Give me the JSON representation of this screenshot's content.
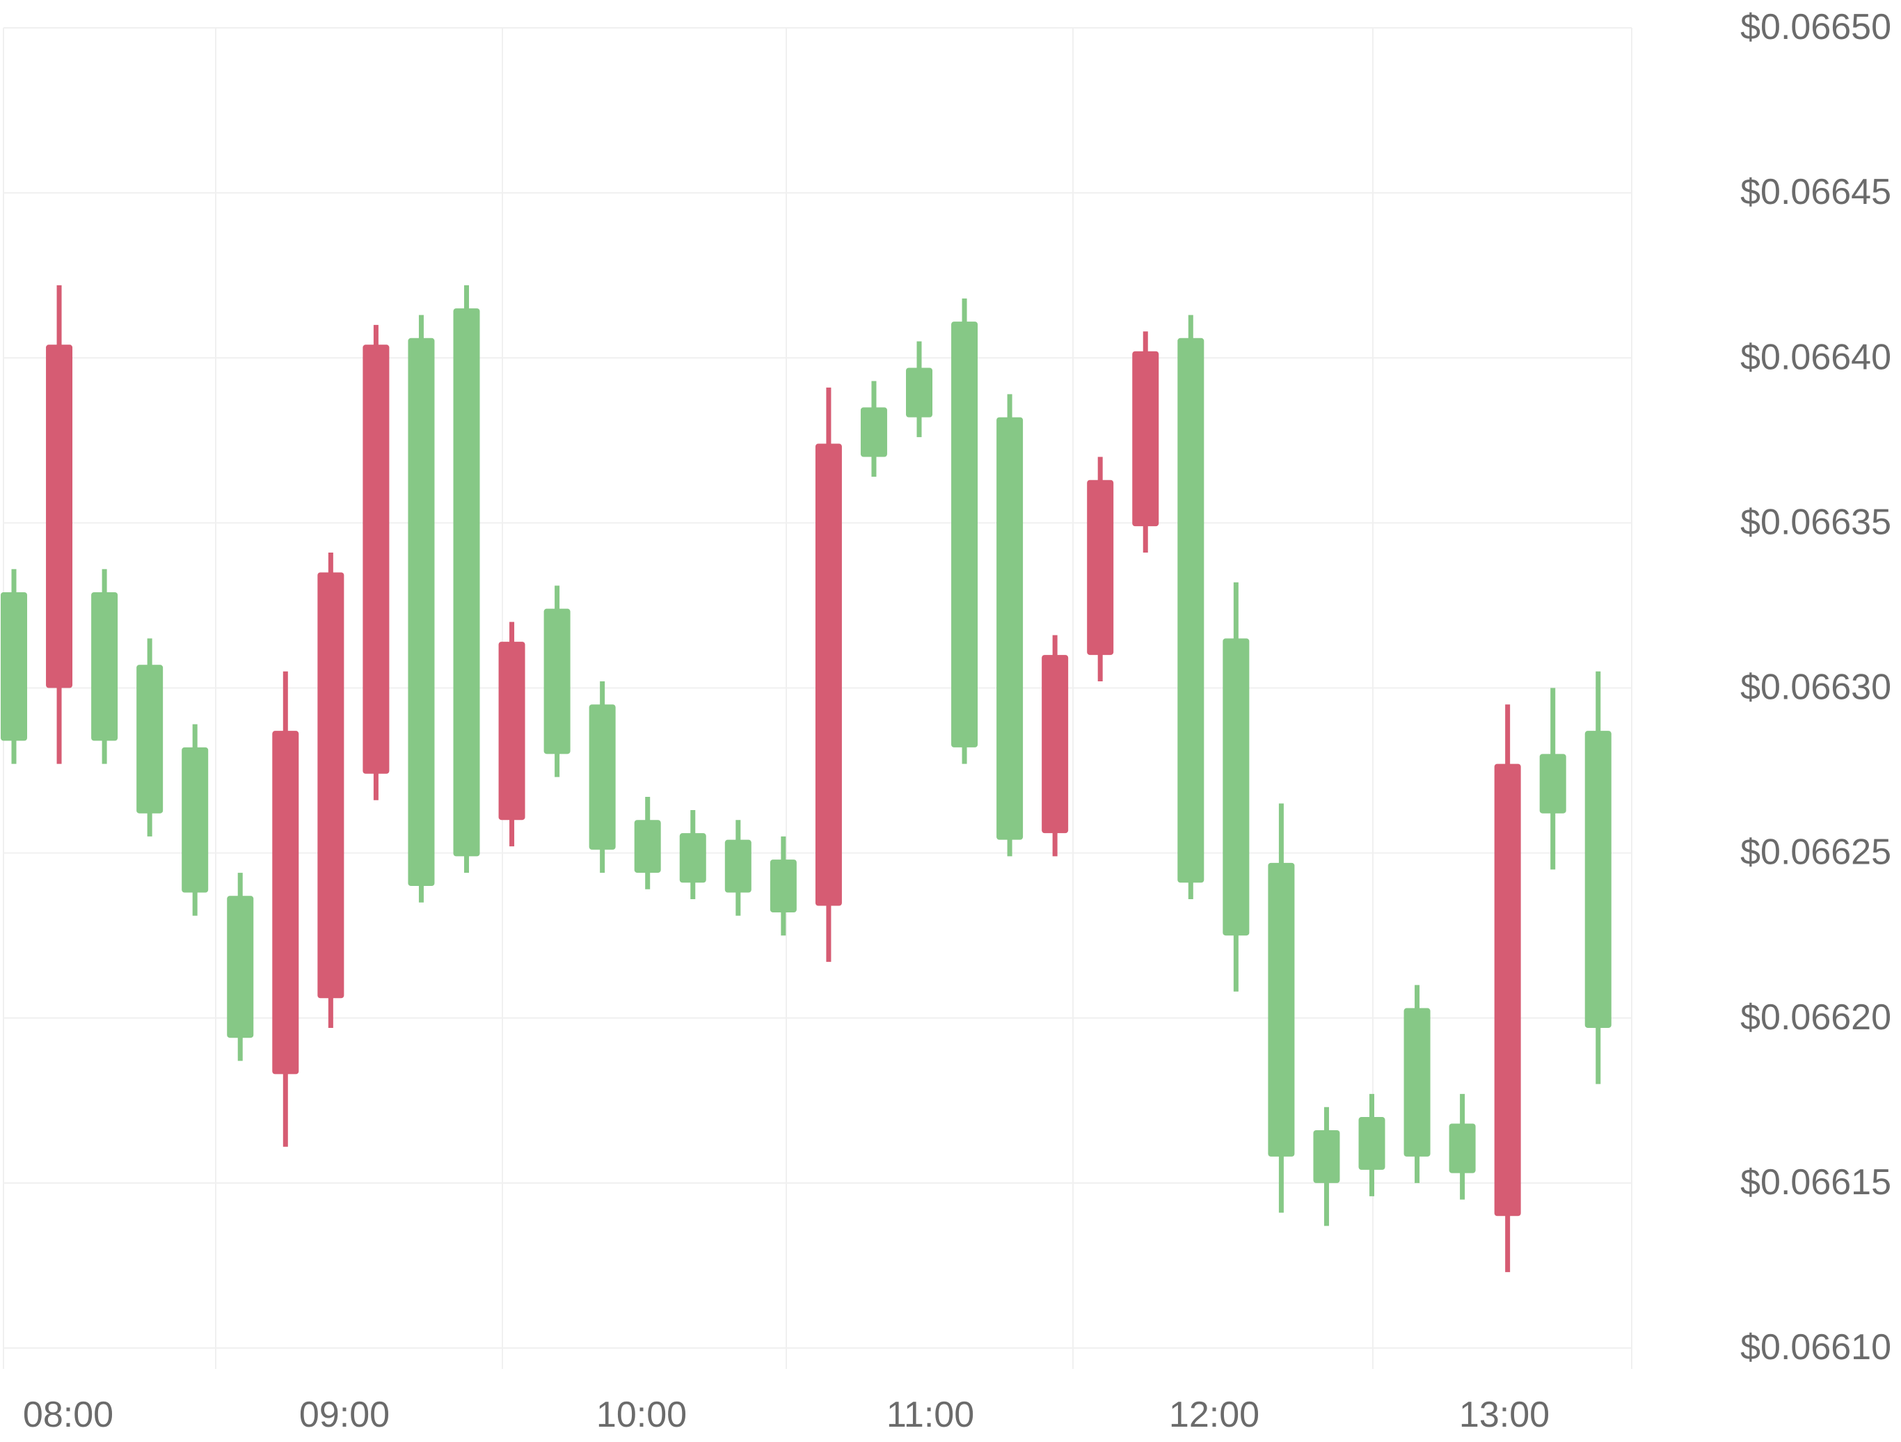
{
  "chart_data": {
    "type": "candlestick",
    "x_ticks": [
      "08:00",
      "09:00",
      "10:00",
      "11:00",
      "12:00",
      "13:00"
    ],
    "y_ticks": [
      "$0.06650",
      "$0.06645",
      "$0.06640",
      "$0.06635",
      "$0.06630",
      "$0.06625",
      "$0.06620",
      "$0.06615",
      "$0.06610"
    ],
    "y_tick_values": [
      0.0665,
      0.06645,
      0.0664,
      0.06635,
      0.0663,
      0.06625,
      0.0662,
      0.06615,
      0.0661
    ],
    "ylim": [
      0.0661,
      0.0665
    ],
    "grid": true,
    "colors": {
      "up": "#86c886",
      "down": "#d65c73",
      "grid": "#f0f0f0",
      "label": "#6b6b6b"
    },
    "candles": [
      {
        "time": "07:50",
        "open": 0.066284,
        "close": 0.066329,
        "high": 0.066336,
        "low": 0.066277
      },
      {
        "time": "07:55",
        "open": 0.066404,
        "close": 0.0663,
        "high": 0.066422,
        "low": 0.066277
      },
      {
        "time": "08:00",
        "open": 0.066284,
        "close": 0.066329,
        "high": 0.066336,
        "low": 0.066277
      },
      {
        "time": "08:05",
        "open": 0.066262,
        "close": 0.066307,
        "high": 0.066315,
        "low": 0.066255
      },
      {
        "time": "08:10",
        "open": 0.066238,
        "close": 0.066282,
        "high": 0.066289,
        "low": 0.066231
      },
      {
        "time": "08:15",
        "open": 0.066194,
        "close": 0.066237,
        "high": 0.066244,
        "low": 0.066187
      },
      {
        "time": "08:20",
        "open": 0.066287,
        "close": 0.066183,
        "high": 0.066305,
        "low": 0.066161
      },
      {
        "time": "08:25",
        "open": 0.066335,
        "close": 0.066206,
        "high": 0.066341,
        "low": 0.066197
      },
      {
        "time": "08:30",
        "open": 0.066404,
        "close": 0.066274,
        "high": 0.06641,
        "low": 0.066266
      },
      {
        "time": "08:35",
        "open": 0.06624,
        "close": 0.066406,
        "high": 0.066413,
        "low": 0.066235
      },
      {
        "time": "08:40",
        "open": 0.066249,
        "close": 0.066415,
        "high": 0.066422,
        "low": 0.066244
      },
      {
        "time": "08:45",
        "open": 0.066314,
        "close": 0.06626,
        "high": 0.06632,
        "low": 0.066252
      },
      {
        "time": "08:50",
        "open": 0.06628,
        "close": 0.066324,
        "high": 0.066331,
        "low": 0.066273
      },
      {
        "time": "08:55",
        "open": 0.066251,
        "close": 0.066295,
        "high": 0.066302,
        "low": 0.066244
      },
      {
        "time": "09:00",
        "open": 0.066244,
        "close": 0.06626,
        "high": 0.066267,
        "low": 0.066239
      },
      {
        "time": "09:05",
        "open": 0.066241,
        "close": 0.066256,
        "high": 0.066263,
        "low": 0.066236
      },
      {
        "time": "09:10",
        "open": 0.066238,
        "close": 0.066254,
        "high": 0.06626,
        "low": 0.066231
      },
      {
        "time": "09:15",
        "open": 0.066232,
        "close": 0.066248,
        "high": 0.066255,
        "low": 0.066225
      },
      {
        "time": "09:20",
        "open": 0.066374,
        "close": 0.066234,
        "high": 0.066391,
        "low": 0.066217
      },
      {
        "time": "09:25",
        "open": 0.06637,
        "close": 0.066385,
        "high": 0.066393,
        "low": 0.066364
      },
      {
        "time": "09:30",
        "open": 0.066382,
        "close": 0.066397,
        "high": 0.066405,
        "low": 0.066376
      },
      {
        "time": "09:35",
        "open": 0.066282,
        "close": 0.066411,
        "high": 0.066418,
        "low": 0.066277
      },
      {
        "time": "09:40",
        "open": 0.066254,
        "close": 0.066382,
        "high": 0.066389,
        "low": 0.066249
      },
      {
        "time": "09:45",
        "open": 0.06631,
        "close": 0.066256,
        "high": 0.066316,
        "low": 0.066249
      },
      {
        "time": "09:50",
        "open": 0.066363,
        "close": 0.06631,
        "high": 0.06637,
        "low": 0.066302
      },
      {
        "time": "09:55",
        "open": 0.066402,
        "close": 0.066349,
        "high": 0.066408,
        "low": 0.066341
      },
      {
        "time": "10:00",
        "open": 0.066241,
        "close": 0.066406,
        "high": 0.066413,
        "low": 0.066236
      },
      {
        "time": "10:05",
        "open": 0.066225,
        "close": 0.066315,
        "high": 0.066332,
        "low": 0.066208
      },
      {
        "time": "10:10",
        "open": 0.066158,
        "close": 0.066247,
        "high": 0.066265,
        "low": 0.066141
      },
      {
        "time": "10:15",
        "open": 0.06615,
        "close": 0.066166,
        "high": 0.066173,
        "low": 0.066137
      },
      {
        "time": "10:20",
        "open": 0.066154,
        "close": 0.06617,
        "high": 0.066177,
        "low": 0.066146
      },
      {
        "time": "10:25",
        "open": 0.066158,
        "close": 0.066203,
        "high": 0.06621,
        "low": 0.06615
      },
      {
        "time": "10:30",
        "open": 0.066153,
        "close": 0.066168,
        "high": 0.066177,
        "low": 0.066145
      },
      {
        "time": "10:35",
        "open": 0.066277,
        "close": 0.06614,
        "high": 0.066295,
        "low": 0.066123
      },
      {
        "time": "10:40",
        "open": 0.066262,
        "close": 0.06628,
        "high": 0.0663,
        "low": 0.066245
      },
      {
        "time": "10:45",
        "open": 0.066197,
        "close": 0.066287,
        "high": 0.066305,
        "low": 0.06618
      }
    ]
  }
}
